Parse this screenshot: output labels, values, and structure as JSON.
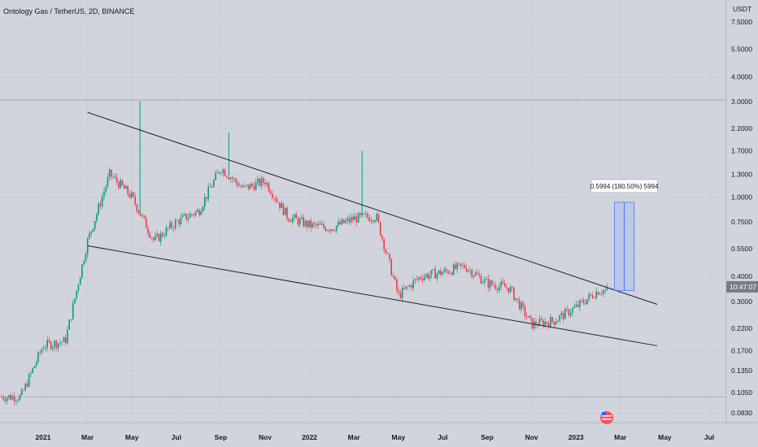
{
  "header": {
    "title": "Ontology Gas / TetherUS, 2D, BINANCE"
  },
  "colors": {
    "up": "#089981",
    "down": "#f23645",
    "trendline": "#1e222d",
    "box": "#b2c5ec",
    "box_stroke": "#2962ff",
    "price_label_bg": "#787b86"
  },
  "chart_data": {
    "type": "candlestick",
    "title": "Ontology Gas / TetherUS, 2D, BINANCE",
    "y_unit": "USDT",
    "y_scale": "log",
    "y_ticks": [
      "7.5000",
      "5.5000",
      "4.0000",
      "3.0000",
      "2.2000",
      "1.7000",
      "1.3000",
      "1.0000",
      "0.7500",
      "0.5500",
      "0.4000",
      "0.3000",
      "0.2200",
      "0.1700",
      "0.1350",
      "0.1050",
      "0.0830"
    ],
    "x_ticks": [
      "2021",
      "Mar",
      "May",
      "Jul",
      "Sep",
      "Nov",
      "2022",
      "Mar",
      "May",
      "Jul",
      "Sep",
      "Nov",
      "2023",
      "Mar",
      "May",
      "Jul"
    ],
    "x_range": [
      "2020-12",
      "2023-08"
    ],
    "last_price_label": "10:47:07",
    "approx_path": [
      {
        "date": "2020-12",
        "price": 0.1
      },
      {
        "date": "2021-01",
        "price": 0.18
      },
      {
        "date": "2021-02",
        "price": 0.19
      },
      {
        "date": "2021-03",
        "price": 0.6
      },
      {
        "date": "2021-04",
        "price": 1.3
      },
      {
        "date": "2021-05",
        "price": 1.0
      },
      {
        "date": "2021-06",
        "price": 0.6
      },
      {
        "date": "2021-07",
        "price": 0.75
      },
      {
        "date": "2021-08",
        "price": 0.85
      },
      {
        "date": "2021-09",
        "price": 1.4
      },
      {
        "date": "2021-10",
        "price": 1.1
      },
      {
        "date": "2021-11",
        "price": 1.2
      },
      {
        "date": "2021-12",
        "price": 0.8
      },
      {
        "date": "2022-01",
        "price": 0.72
      },
      {
        "date": "2022-02",
        "price": 0.7
      },
      {
        "date": "2022-03",
        "price": 0.78
      },
      {
        "date": "2022-04",
        "price": 0.8
      },
      {
        "date": "2022-05",
        "price": 0.32
      },
      {
        "date": "2022-06",
        "price": 0.4
      },
      {
        "date": "2022-07",
        "price": 0.42
      },
      {
        "date": "2022-08",
        "price": 0.45
      },
      {
        "date": "2022-09",
        "price": 0.37
      },
      {
        "date": "2022-10",
        "price": 0.35
      },
      {
        "date": "2022-11",
        "price": 0.23
      },
      {
        "date": "2022-12",
        "price": 0.24
      },
      {
        "date": "2023-01",
        "price": 0.28
      },
      {
        "date": "2023-02",
        "price": 0.34
      }
    ],
    "spikes": [
      {
        "date": "2021-05",
        "high": 3.0
      },
      {
        "date": "2021-09",
        "high": 2.1
      },
      {
        "date": "2022-03",
        "high": 1.7
      }
    ],
    "trendlines": [
      {
        "name": "upper",
        "from": {
          "date": "2021-03",
          "price": 2.65
        },
        "to": {
          "date": "2023-04",
          "price": 0.29
        }
      },
      {
        "name": "lower",
        "from": {
          "date": "2021-03",
          "price": 0.57
        },
        "to": {
          "date": "2023-04",
          "price": 0.18
        }
      }
    ],
    "measure": {
      "label": "0.5994 (180.50%) 5994",
      "from": {
        "date": "2023-02",
        "price": 0.34
      },
      "to": {
        "date": "2023-03",
        "price": 0.94
      }
    }
  }
}
